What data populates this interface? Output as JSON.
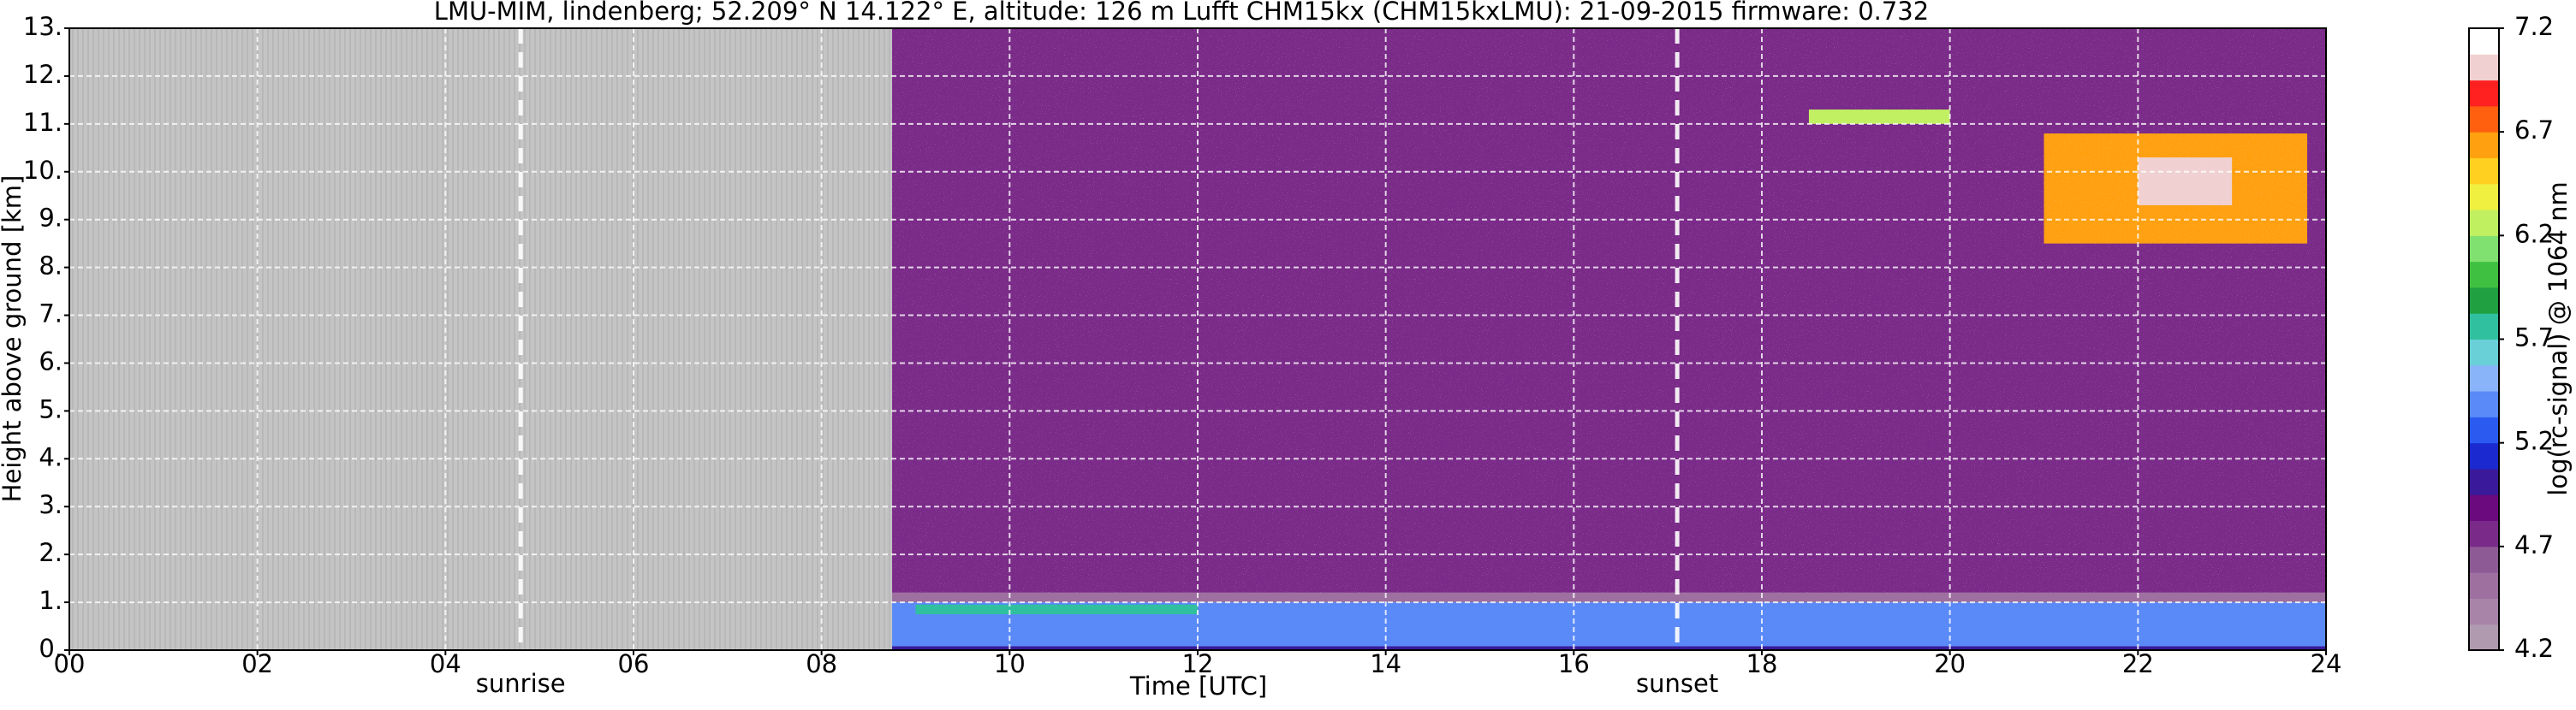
{
  "chart_data": {
    "type": "heatmap",
    "title": "LMU-MIM, lindenberg; 52.209° N 14.122° E, altitude: 126 m    Lufft CHM15kx (CHM15kxLMU): 21-09-2015    firmware: 0.732",
    "x_label": "Time [UTC]",
    "y_label": "Height above ground [km]",
    "colorbar_label": "log(rc-signal) @ 1064 nm",
    "xlim": [
      0,
      24
    ],
    "xticks": [
      {
        "value": 0,
        "label": "00"
      },
      {
        "value": 2,
        "label": "02"
      },
      {
        "value": 4,
        "label": "04"
      },
      {
        "value": 6,
        "label": "06"
      },
      {
        "value": 8,
        "label": "08"
      },
      10,
      12,
      14,
      16,
      18,
      20,
      22,
      24
    ],
    "ylim": [
      0,
      13
    ],
    "yticks": [
      {
        "value": 0,
        "label": "0."
      },
      {
        "value": 1,
        "label": "1."
      },
      {
        "value": 2,
        "label": "2."
      },
      {
        "value": 3,
        "label": "3."
      },
      {
        "value": 4,
        "label": "4."
      },
      {
        "value": 5,
        "label": "5."
      },
      {
        "value": 6,
        "label": "6."
      },
      {
        "value": 7,
        "label": "7."
      },
      {
        "value": 8,
        "label": "8."
      },
      {
        "value": 9,
        "label": "9."
      },
      {
        "value": 10,
        "label": "10."
      },
      {
        "value": 11,
        "label": "11."
      },
      {
        "value": 12,
        "label": "12."
      },
      {
        "value": 13,
        "label": "13."
      }
    ],
    "grid": true,
    "clim": [
      4.2,
      7.2
    ],
    "cticks": [
      4.2,
      4.7,
      5.2,
      5.7,
      6.2,
      6.7,
      7.2
    ],
    "colormap": [
      "#b09ab0",
      "#a884a8",
      "#9e70a0",
      "#8e5a96",
      "#7a2a88",
      "#6a0a7e",
      "#3a1a9a",
      "#1a2ad0",
      "#2a5af0",
      "#5a8af8",
      "#8ab4fa",
      "#6ad0d8",
      "#30c0a0",
      "#20a040",
      "#40c040",
      "#80e070",
      "#c0f060",
      "#f0f040",
      "#ffd020",
      "#ffa010",
      "#ff6010",
      "#ff2020",
      "#f0d0d0",
      "#ffffff"
    ],
    "no_data": [
      0,
      8.75
    ],
    "layers": [
      {
        "x": [
          8.75,
          24
        ],
        "y": [
          1.2,
          13
        ],
        "value": 4.8
      },
      {
        "x": [
          8.75,
          24
        ],
        "y": [
          1.0,
          1.2
        ],
        "value": 4.5
      },
      {
        "x": [
          8.75,
          24
        ],
        "y": [
          0,
          1.0
        ],
        "value": 5.4
      },
      {
        "x": [
          8.75,
          24
        ],
        "y": [
          0,
          0.08
        ],
        "value": 5.0
      },
      {
        "x": [
          9,
          12
        ],
        "y": [
          0.75,
          0.95
        ],
        "value": 5.75
      },
      {
        "x": [
          18.5,
          20
        ],
        "y": [
          11,
          11.3
        ],
        "value": 6.3
      },
      {
        "x": [
          21,
          23.8
        ],
        "y": [
          8.5,
          10.8
        ],
        "value": 6.6
      },
      {
        "x": [
          22,
          23
        ],
        "y": [
          9.3,
          10.3
        ],
        "value": 7.0
      }
    ],
    "events": [
      {
        "label": "sunrise",
        "x": 4.8
      },
      {
        "label": "sunset",
        "x": 17.1
      }
    ]
  }
}
